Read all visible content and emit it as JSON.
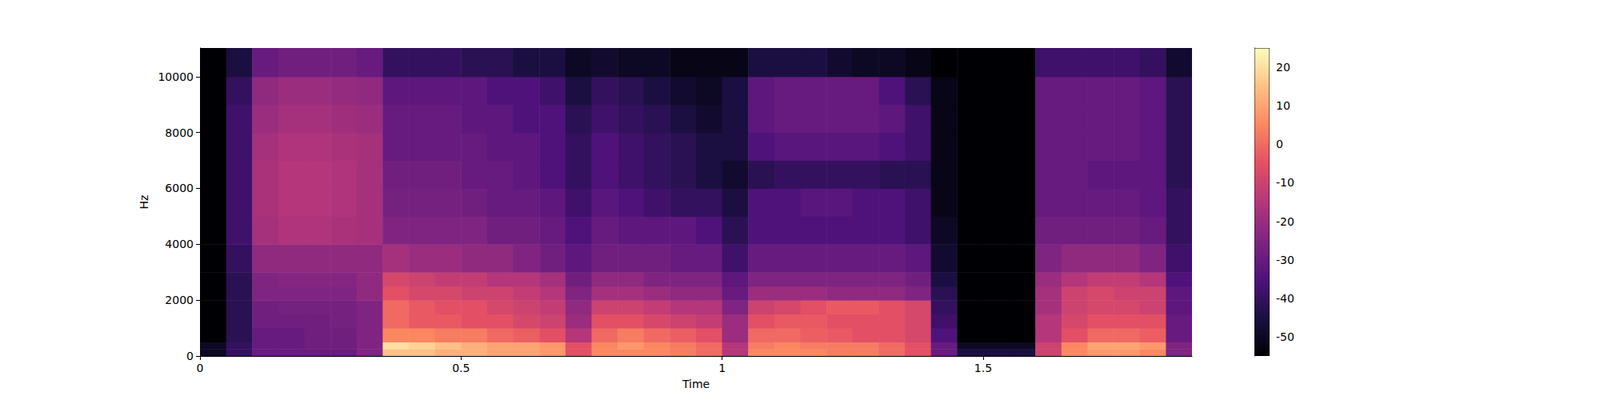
{
  "chart_data": {
    "type": "spectrogram",
    "x_label": "Time",
    "y_label": "Hz",
    "xlim": [
      0,
      1.9
    ],
    "xticks": [
      0,
      0.5,
      1,
      1.5
    ],
    "ylim": [
      0,
      11025
    ],
    "yticks": [
      0,
      2000,
      4000,
      6000,
      8000,
      10000
    ],
    "time_bins": [
      0,
      0.05,
      0.1,
      0.15,
      0.2,
      0.25,
      0.3,
      0.35,
      0.4,
      0.45,
      0.5,
      0.55,
      0.6,
      0.65,
      0.7,
      0.75,
      0.8,
      0.85,
      0.9,
      0.95,
      1.0,
      1.05,
      1.1,
      1.15,
      1.2,
      1.25,
      1.3,
      1.35,
      1.4,
      1.45,
      1.5,
      1.55,
      1.6,
      1.65,
      1.7,
      1.75,
      1.8,
      1.85,
      1.9
    ],
    "freq_bins": [
      0,
      250,
      500,
      1000,
      1500,
      2000,
      2500,
      3000,
      4000,
      5000,
      6000,
      7000,
      8000,
      9000,
      10000,
      11025
    ],
    "cells": [
      [
        -50,
        -40,
        -30,
        -30,
        -30,
        -30,
        -25,
        15,
        15,
        12,
        12,
        10,
        10,
        8,
        -5,
        5,
        5,
        5,
        3,
        0,
        -15,
        5,
        5,
        5,
        3,
        3,
        0,
        -5,
        -30,
        -45,
        -45,
        -45,
        -10,
        5,
        8,
        8,
        5,
        -25
      ],
      [
        -50,
        -40,
        -30,
        -30,
        -28,
        -28,
        -25,
        20,
        18,
        15,
        12,
        10,
        10,
        8,
        -5,
        5,
        8,
        5,
        3,
        0,
        -15,
        3,
        5,
        3,
        3,
        3,
        0,
        -5,
        -30,
        -50,
        -50,
        -50,
        -10,
        5,
        10,
        10,
        8,
        -25
      ],
      [
        -55,
        -42,
        -30,
        -30,
        -28,
        -28,
        -25,
        5,
        5,
        3,
        3,
        0,
        -2,
        -5,
        -15,
        0,
        3,
        0,
        -2,
        -5,
        -20,
        0,
        0,
        -2,
        -3,
        -5,
        -5,
        -8,
        -35,
        -55,
        -55,
        -55,
        -15,
        -5,
        0,
        0,
        -2,
        -30
      ],
      [
        -55,
        -42,
        -28,
        -28,
        -28,
        -27,
        -25,
        0,
        -3,
        -3,
        -5,
        -5,
        -8,
        -10,
        -20,
        -5,
        -5,
        -8,
        -10,
        -12,
        -20,
        -5,
        -3,
        -3,
        -5,
        -5,
        -5,
        -8,
        -38,
        -55,
        -55,
        -55,
        -15,
        -8,
        -5,
        -5,
        -5,
        -30
      ],
      [
        -55,
        -42,
        -28,
        -27,
        -27,
        -27,
        -25,
        0,
        -3,
        -5,
        -5,
        -8,
        -10,
        -12,
        -22,
        -10,
        -10,
        -12,
        -15,
        -15,
        -25,
        -10,
        -8,
        -5,
        -3,
        -3,
        -5,
        -8,
        -40,
        -55,
        -55,
        -55,
        -18,
        -10,
        -8,
        -8,
        -10,
        -32
      ],
      [
        -55,
        -42,
        -25,
        -25,
        -25,
        -25,
        -22,
        -5,
        -8,
        -8,
        -10,
        -10,
        -12,
        -15,
        -25,
        -18,
        -18,
        -20,
        -22,
        -22,
        -30,
        -20,
        -20,
        -20,
        -22,
        -22,
        -22,
        -25,
        -42,
        -55,
        -55,
        -55,
        -18,
        -10,
        -8,
        -10,
        -10,
        -32
      ],
      [
        -55,
        -42,
        -25,
        -24,
        -24,
        -24,
        -22,
        -8,
        -10,
        -12,
        -12,
        -15,
        -15,
        -18,
        -28,
        -22,
        -22,
        -25,
        -25,
        -25,
        -32,
        -25,
        -25,
        -25,
        -25,
        -25,
        -25,
        -28,
        -45,
        -55,
        -55,
        -55,
        -20,
        -15,
        -12,
        -12,
        -15,
        -35
      ],
      [
        -55,
        -40,
        -22,
        -22,
        -22,
        -22,
        -22,
        -18,
        -20,
        -20,
        -22,
        -22,
        -25,
        -28,
        -32,
        -28,
        -28,
        -28,
        -30,
        -30,
        -38,
        -30,
        -30,
        -30,
        -30,
        -30,
        -30,
        -32,
        -48,
        -55,
        -55,
        -55,
        -25,
        -22,
        -22,
        -22,
        -25,
        -38
      ],
      [
        -55,
        -38,
        -18,
        -16,
        -16,
        -17,
        -18,
        -25,
        -25,
        -25,
        -25,
        -28,
        -28,
        -30,
        -35,
        -30,
        -32,
        -32,
        -32,
        -35,
        -42,
        -35,
        -35,
        -35,
        -35,
        -35,
        -35,
        -38,
        -50,
        -55,
        -55,
        -55,
        -28,
        -28,
        -28,
        -28,
        -30,
        -40
      ],
      [
        -55,
        -38,
        -17,
        -15,
        -15,
        -16,
        -18,
        -27,
        -27,
        -27,
        -28,
        -30,
        -30,
        -32,
        -38,
        -33,
        -35,
        -38,
        -40,
        -40,
        -45,
        -35,
        -35,
        -33,
        -33,
        -35,
        -35,
        -38,
        -52,
        -55,
        -55,
        -55,
        -30,
        -30,
        -30,
        -30,
        -32,
        -40
      ],
      [
        -55,
        -38,
        -17,
        -15,
        -15,
        -16,
        -18,
        -28,
        -28,
        -28,
        -30,
        -30,
        -32,
        -35,
        -40,
        -35,
        -38,
        -40,
        -42,
        -45,
        -48,
        -42,
        -40,
        -40,
        -40,
        -40,
        -42,
        -42,
        -52,
        -55,
        -55,
        -55,
        -30,
        -30,
        -32,
        -32,
        -32,
        -42
      ],
      [
        -55,
        -38,
        -18,
        -16,
        -16,
        -17,
        -18,
        -30,
        -30,
        -30,
        -30,
        -32,
        -32,
        -35,
        -40,
        -35,
        -38,
        -40,
        -42,
        -45,
        -45,
        -35,
        -33,
        -33,
        -33,
        -33,
        -35,
        -38,
        -52,
        -55,
        -55,
        -55,
        -30,
        -30,
        -30,
        -30,
        -32,
        -42
      ],
      [
        -55,
        -38,
        -20,
        -18,
        -18,
        -19,
        -20,
        -30,
        -30,
        -30,
        -32,
        -32,
        -35,
        -35,
        -42,
        -38,
        -40,
        -42,
        -45,
        -48,
        -45,
        -32,
        -30,
        -30,
        -30,
        -30,
        -32,
        -38,
        -52,
        -55,
        -55,
        -55,
        -30,
        -30,
        -30,
        -30,
        -32,
        -42
      ],
      [
        -55,
        -40,
        -22,
        -20,
        -20,
        -21,
        -22,
        -32,
        -32,
        -32,
        -32,
        -35,
        -35,
        -38,
        -45,
        -40,
        -42,
        -45,
        -48,
        -50,
        -45,
        -32,
        -30,
        -30,
        -30,
        -30,
        -35,
        -42,
        -52,
        -55,
        -55,
        -55,
        -30,
        -30,
        -30,
        -30,
        -32,
        -42
      ],
      [
        -55,
        -45,
        -30,
        -28,
        -28,
        -28,
        -30,
        -40,
        -40,
        -40,
        -42,
        -42,
        -45,
        -45,
        -50,
        -48,
        -50,
        -50,
        -52,
        -52,
        -52,
        -45,
        -45,
        -45,
        -48,
        -50,
        -50,
        -52,
        -55,
        -55,
        -55,
        -55,
        -38,
        -38,
        -38,
        -38,
        -40,
        -48
      ]
    ],
    "colorbar": {
      "range": [
        -55,
        25
      ],
      "ticks": [
        -50,
        -40,
        -30,
        -20,
        -10,
        0,
        10,
        20
      ]
    }
  }
}
